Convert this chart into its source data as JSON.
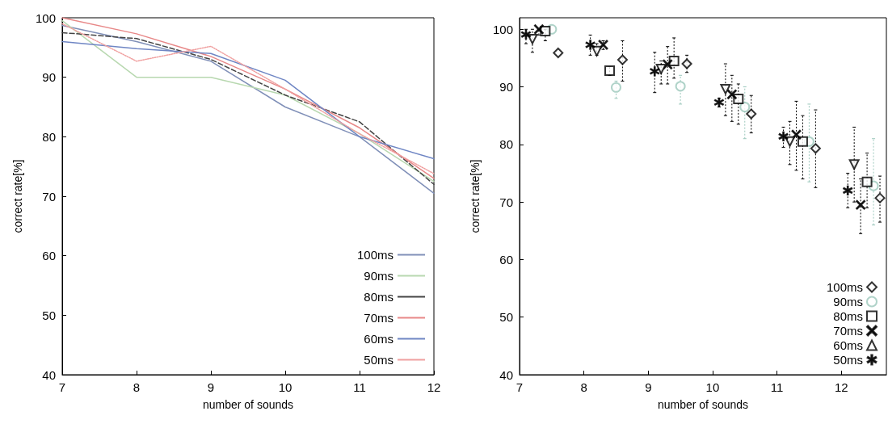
{
  "chart_data": [
    {
      "type": "line",
      "xlabel": "number of sounds",
      "ylabel": "correct rate[%]",
      "x": [
        7,
        8,
        9,
        10,
        11,
        12
      ],
      "xlim": [
        7,
        12
      ],
      "xticks": [
        7,
        8,
        9,
        10,
        11,
        12
      ],
      "ylim": [
        40,
        100
      ],
      "yticks": [
        40,
        50,
        60,
        70,
        80,
        90,
        100
      ],
      "grid": false,
      "legend": "bottom right",
      "marker": "none",
      "series": [
        {
          "name": "100ms",
          "color": "#8090b8",
          "line_style": "solid",
          "values": [
            98.7,
            96,
            92.7,
            85,
            80,
            70.5
          ]
        },
        {
          "name": "90ms",
          "color": "#b8d8b0",
          "line_style": "solid",
          "values": [
            99.5,
            90,
            90,
            87,
            80.5,
            72.5
          ]
        },
        {
          "name": "80ms",
          "color": "#444444",
          "line_style": "dashed",
          "values": [
            97.5,
            96.5,
            93,
            87,
            82.5,
            72
          ]
        },
        {
          "name": "70ms",
          "color": "#e88888",
          "line_style": "solid",
          "values": [
            100,
            97.3,
            93.5,
            88,
            81.5,
            73
          ]
        },
        {
          "name": "60ms",
          "color": "#6f86c4",
          "line_style": "solid",
          "values": [
            96,
            94.8,
            94,
            89.5,
            80,
            76.3
          ]
        },
        {
          "name": "50ms",
          "color": "#f0a0a0",
          "line_style": "dotted",
          "values": [
            99,
            92.7,
            95.2,
            88,
            80.5,
            73.8
          ]
        }
      ]
    },
    {
      "type": "scatter",
      "xlabel": "number of sounds",
      "ylabel": "correct rate[%]",
      "xlim": [
        7,
        12.7
      ],
      "xticks": [
        7,
        8,
        9,
        10,
        11,
        12
      ],
      "ylim": [
        40,
        102
      ],
      "yticks": [
        40,
        50,
        60,
        70,
        80,
        90,
        100
      ],
      "grid": false,
      "legend": "bottom right",
      "series": [
        {
          "name": "100ms",
          "color": "#000000",
          "marker": "diamond",
          "x": [
            7.6,
            8.6,
            9.6,
            10.6,
            11.6,
            12.6
          ],
          "values": [
            95.9,
            94.7,
            94,
            85.3,
            79.3,
            70.7
          ],
          "errors": [
            null,
            [
              91,
              98
            ],
            [
              92.5,
              95.5
            ],
            [
              82,
              88.5
            ],
            [
              72.5,
              86
            ],
            [
              66.5,
              74.5
            ]
          ]
        },
        {
          "name": "90ms",
          "color": "#9cc8bc",
          "marker": "circle",
          "x": [
            7.5,
            8.5,
            9.5,
            10.5,
            11.5,
            12.5
          ],
          "values": [
            100,
            89.9,
            90.1,
            86.5,
            80.5,
            72.8
          ],
          "errors": [
            null,
            [
              88,
              91
            ],
            [
              87,
              92
            ],
            [
              81,
              90
            ],
            [
              73.5,
              87
            ],
            [
              66,
              81
            ]
          ]
        },
        {
          "name": "80ms",
          "color": "#000000",
          "marker": "square",
          "x": [
            7.4,
            8.4,
            9.4,
            10.4,
            11.4,
            12.4
          ],
          "values": [
            99.7,
            92.8,
            94.5,
            87.9,
            80.5,
            73.5
          ],
          "errors": [
            [
              98,
              100
            ],
            [
              92,
              93.5
            ],
            [
              91.5,
              98.5
            ],
            [
              83.5,
              90.5
            ],
            [
              74,
              85
            ],
            [
              69,
              78.5
            ]
          ]
        },
        {
          "name": "70ms",
          "color": "#000000",
          "marker": "cross",
          "x": [
            7.3,
            8.3,
            9.3,
            10.3,
            11.3,
            12.3
          ],
          "values": [
            100,
            97.3,
            93.9,
            88.7,
            81.7,
            69.5
          ],
          "errors": [
            [
              99,
              100
            ],
            [
              96.5,
              98
            ],
            [
              90.5,
              97
            ],
            [
              84,
              92
            ],
            [
              75.5,
              87.5
            ],
            [
              64.5,
              74
            ]
          ]
        },
        {
          "name": "60ms",
          "color": "#000000",
          "marker": "triangle",
          "x": [
            7.2,
            8.2,
            9.2,
            10.2,
            11.2,
            12.2
          ],
          "values": [
            98.3,
            96.2,
            93.1,
            89.6,
            80.5,
            76.5
          ],
          "errors": [
            [
              96,
              100
            ],
            [
              95.5,
              97.5
            ],
            [
              90.5,
              94.5
            ],
            [
              85,
              94
            ],
            [
              76.5,
              84
            ],
            [
              70,
              83
            ]
          ]
        },
        {
          "name": "50ms",
          "color": "#000000",
          "marker": "star",
          "x": [
            7.1,
            8.1,
            9.1,
            10.1,
            11.1,
            12.1
          ],
          "values": [
            99.1,
            97.3,
            92.7,
            87.3,
            81.4,
            72
          ],
          "errors": [
            [
              97.5,
              100
            ],
            [
              95.5,
              99
            ],
            [
              89,
              96
            ],
            [
              86.5,
              88
            ],
            [
              79.5,
              83
            ],
            [
              69,
              75
            ]
          ]
        }
      ]
    }
  ]
}
